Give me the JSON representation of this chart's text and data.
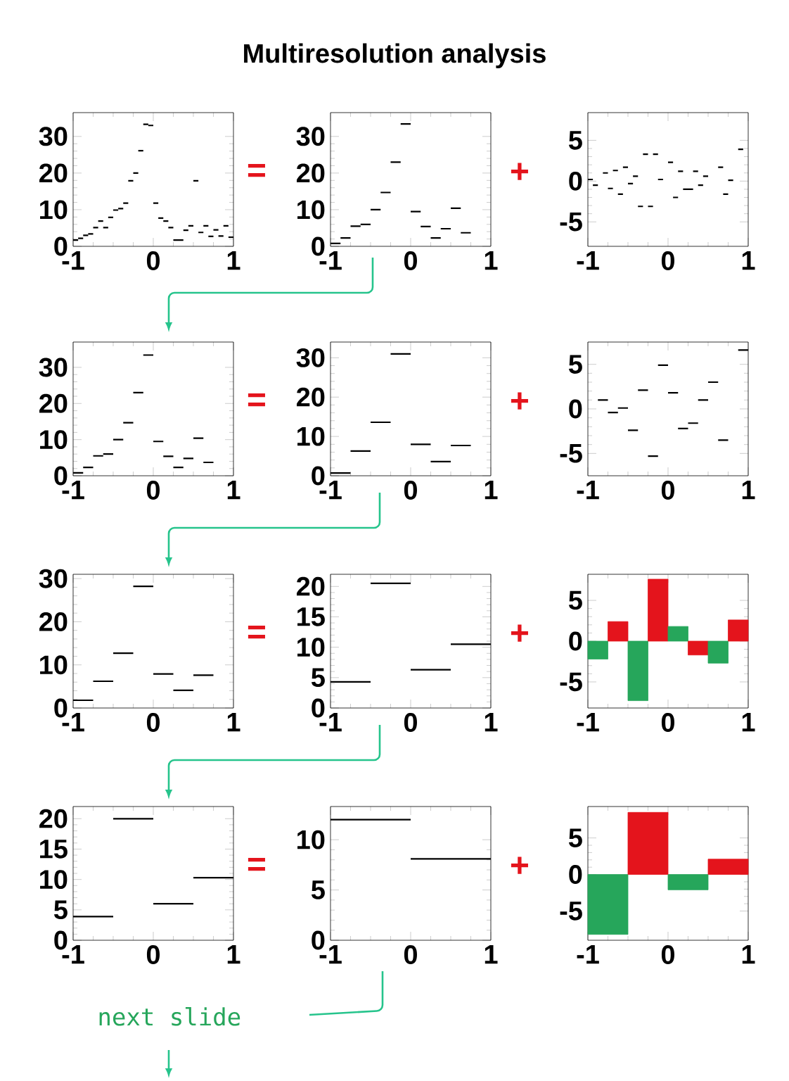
{
  "chart_data": [
    {
      "type": "step",
      "x": [
        -1,
        -0.9375,
        -0.875,
        -0.8125,
        -0.75,
        -0.6875,
        -0.625,
        -0.5625,
        -0.5,
        -0.4375,
        -0.375,
        -0.3125,
        -0.25,
        -0.1875,
        -0.125,
        -0.0625,
        0,
        0.0625,
        0.125,
        0.1875,
        0.25,
        0.3125,
        0.375,
        0.4375,
        0.5,
        0.5625,
        0.625,
        0.6875,
        0.75,
        0.8125,
        0.875,
        0.9375,
        1
      ],
      "values": [
        1.7,
        2.2,
        3.0,
        3.4,
        5.1,
        6.9,
        5.1,
        7.9,
        9.9,
        10.3,
        11.8,
        17.9,
        20.0,
        26.1,
        33.3,
        33.0,
        11.8,
        7.7,
        6.9,
        5.1,
        1.7,
        1.7,
        4.4,
        5.6,
        17.9,
        3.8,
        5.6,
        2.7,
        4.5,
        2.8,
        5.6,
        2.5,
        2.5
      ],
      "color": "#000000",
      "xlim": [
        -1,
        1
      ],
      "ylim": [
        0,
        36.5
      ],
      "xticks": [
        -1,
        0,
        1
      ],
      "yticks": [
        0,
        10,
        20,
        30
      ]
    },
    {
      "type": "step",
      "title": "Multiresolution analysis",
      "x": [
        -1,
        -0.875,
        -0.75,
        -0.625,
        -0.5,
        -0.375,
        -0.25,
        -0.125,
        0,
        0.125,
        0.25,
        0.375,
        0.5,
        0.625,
        0.75
      ],
      "values": [
        0.8,
        2.3,
        5.5,
        6.0,
        10,
        14.7,
        23,
        33.4,
        9.5,
        5.4,
        2.3,
        4.8,
        10.4,
        3.7,
        3.7
      ],
      "color": "#000000",
      "xlim": [
        -1,
        1
      ],
      "ylim": [
        0,
        36.5
      ],
      "xticks": [
        -1,
        0,
        1
      ],
      "yticks": [
        0,
        10,
        20,
        30
      ],
      "annotations": [
        "="
      ]
    },
    {
      "type": "step",
      "x": [
        -1,
        -0.9375,
        -0.875,
        -0.8125,
        -0.75,
        -0.6875,
        -0.625,
        -0.5625,
        -0.5,
        -0.4375,
        -0.375,
        -0.3125,
        -0.25,
        -0.1875,
        -0.125,
        -0.0625,
        0,
        0.0625,
        0.125,
        0.1875,
        0.25,
        0.3125,
        0.375,
        0.4375,
        0.5,
        0.5625,
        0.625,
        0.6875,
        0.75,
        0.8125,
        0.875,
        0.9375
      ],
      "values": [
        0.2,
        -0.5,
        null,
        1.0,
        -0.9,
        1.3,
        -1.6,
        1.7,
        -0.3,
        0.6,
        -3.1,
        3.3,
        -3.1,
        3.3,
        0.2,
        null,
        2.3,
        -2.0,
        1.2,
        -1.0,
        -1.0,
        1.2,
        -0.5,
        0.6,
        null,
        null,
        1.7,
        -1.6,
        0.1,
        null,
        3.9,
        3.9
      ],
      "color": "#000000",
      "xlim": [
        -1,
        1
      ],
      "ylim": [
        -8,
        8.4
      ],
      "xticks": [
        -1,
        0,
        1
      ],
      "yticks": [
        -5,
        0,
        5
      ],
      "annotations": [
        "+"
      ]
    },
    {
      "type": "step",
      "x": [
        -1,
        -0.875,
        -0.75,
        -0.625,
        -0.5,
        -0.375,
        -0.25,
        -0.125,
        0,
        0.125,
        0.25,
        0.375,
        0.5,
        0.625,
        0.75
      ],
      "values": [
        0.8,
        2.3,
        5.5,
        6.0,
        10,
        14.7,
        23,
        33.4,
        9.5,
        5.4,
        2.3,
        4.8,
        10.4,
        3.7,
        3.7
      ],
      "color": "#000000",
      "xlim": [
        -1,
        1
      ],
      "ylim": [
        0,
        37
      ],
      "xticks": [
        -1,
        0,
        1
      ],
      "yticks": [
        0,
        10,
        20,
        30
      ]
    },
    {
      "type": "step",
      "x": [
        -1,
        -0.75,
        -0.5,
        -0.25,
        0,
        0.25,
        0.5,
        0.75
      ],
      "values": [
        0.7,
        6.3,
        13.6,
        31,
        8,
        3.6,
        7.7,
        7.7
      ],
      "color": "#000000",
      "xlim": [
        -1,
        1
      ],
      "ylim": [
        0,
        34
      ],
      "xticks": [
        -1,
        0,
        1
      ],
      "yticks": [
        0,
        10,
        20,
        30
      ],
      "annotations": [
        "="
      ]
    },
    {
      "type": "step",
      "x": [
        -0.875,
        -0.75,
        -0.625,
        -0.5,
        -0.375,
        -0.25,
        -0.125,
        0,
        0.125,
        0.25,
        0.375,
        0.5,
        0.625,
        0.75,
        0.875,
        1
      ],
      "values": [
        1.0,
        -0.4,
        0.1,
        -2.4,
        2.1,
        -5.3,
        4.9,
        1.8,
        -2.2,
        -1.6,
        1.0,
        3.0,
        -3.5,
        null,
        6.6,
        6.6
      ],
      "color": "#000000",
      "xlim": [
        -1,
        1
      ],
      "ylim": [
        -7.5,
        7.5
      ],
      "xticks": [
        -1,
        0,
        1
      ],
      "yticks": [
        -5,
        0,
        5
      ],
      "annotations": [
        "+"
      ]
    },
    {
      "type": "step",
      "x": [
        -1,
        -0.75,
        -0.5,
        -0.25,
        0,
        0.25,
        0.5,
        0.75
      ],
      "values": [
        1.8,
        6.2,
        12.7,
        28.2,
        7.9,
        4.1,
        7.6,
        7.6
      ],
      "color": "#000000",
      "xlim": [
        -1,
        1
      ],
      "ylim": [
        0,
        31
      ],
      "xticks": [
        -1,
        0,
        1
      ],
      "yticks": [
        0,
        10,
        20,
        30
      ]
    },
    {
      "type": "step",
      "x": [
        -1,
        -0.5,
        0,
        0.5,
        1
      ],
      "values": [
        4.3,
        20.5,
        6.3,
        10.5,
        10.5
      ],
      "color": "#000000",
      "xlim": [
        -1,
        1
      ],
      "ylim": [
        0,
        22
      ],
      "xticks": [
        -1,
        0,
        1
      ],
      "yticks": [
        0,
        5,
        10,
        15,
        20
      ],
      "annotations": [
        "="
      ]
    },
    {
      "type": "bar",
      "x": [
        -0.875,
        -0.625,
        -0.375,
        -0.125,
        0.125,
        0.375,
        0.625,
        0.875
      ],
      "values": [
        -2.2,
        2.4,
        -7.3,
        7.6,
        1.8,
        -1.7,
        -2.7,
        2.6
      ],
      "colors": [
        "#26a65b",
        "#e4141c",
        "#26a65b",
        "#e4141c",
        "#26a65b",
        "#e4141c",
        "#26a65b",
        "#e4141c"
      ],
      "xlim": [
        -1,
        1
      ],
      "ylim": [
        -8.2,
        8.2
      ],
      "xticks": [
        -1,
        0,
        1
      ],
      "yticks": [
        -5,
        0,
        5
      ],
      "annotations": [
        "+"
      ]
    },
    {
      "type": "step",
      "x": [
        -1,
        -0.5,
        0,
        0.5,
        1
      ],
      "values": [
        3.9,
        20,
        6,
        10.3,
        10.3
      ],
      "color": "#000000",
      "xlim": [
        -1,
        1
      ],
      "ylim": [
        0,
        22
      ],
      "xticks": [
        -1,
        0,
        1
      ],
      "yticks": [
        0,
        5,
        10,
        15,
        20
      ],
      "annotations": [
        "next slide"
      ]
    },
    {
      "type": "step",
      "x": [
        -1,
        0,
        1
      ],
      "values": [
        12,
        8.1,
        8.1
      ],
      "color": "#000000",
      "xlim": [
        -1,
        1
      ],
      "ylim": [
        0,
        13.3
      ],
      "xticks": [
        -1,
        0,
        1
      ],
      "yticks": [
        0,
        5,
        10
      ],
      "annotations": [
        "="
      ]
    },
    {
      "type": "bar",
      "x": [
        -0.75,
        -0.25,
        0.25,
        0.75
      ],
      "values": [
        -8.2,
        8.5,
        -2.1,
        2.1
      ],
      "colors": [
        "#26a65b",
        "#e4141c",
        "#26a65b",
        "#e4141c"
      ],
      "xlim": [
        -1,
        1
      ],
      "ylim": [
        -9,
        9.3
      ],
      "xticks": [
        -1,
        0,
        1
      ],
      "yticks": [
        -5,
        0,
        5
      ],
      "annotations": [
        "+"
      ]
    }
  ]
}
